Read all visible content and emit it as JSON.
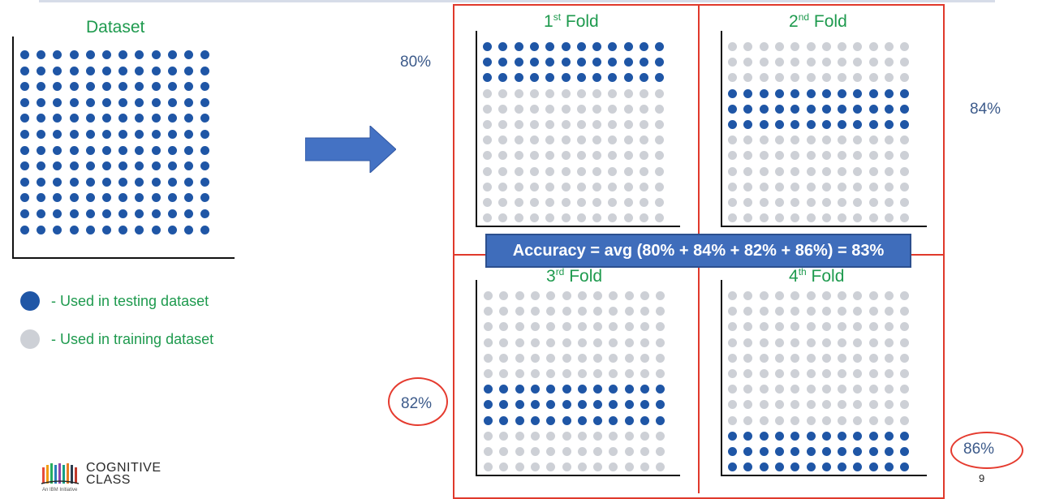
{
  "dataset": {
    "title": "Dataset"
  },
  "legend": {
    "testing": "- Used in testing dataset",
    "training": "- Used in training dataset"
  },
  "colors": {
    "testing_dot": "#1f56a6",
    "training_dot": "#cdd0d6",
    "fold_border": "#e0392b",
    "accuracy_box": "#3f6dbb",
    "title_green": "#1e9a4e",
    "arrow": "#4472c4"
  },
  "grid": {
    "rows": 12,
    "cols": 12
  },
  "folds": [
    {
      "ordinal": "1",
      "suffix": "st",
      "label": "Fold",
      "accuracy": "80%",
      "test_rows": [
        0,
        1,
        2
      ]
    },
    {
      "ordinal": "2",
      "suffix": "nd",
      "label": "Fold",
      "accuracy": "84%",
      "test_rows": [
        3,
        4,
        5
      ]
    },
    {
      "ordinal": "3",
      "suffix": "rd",
      "label": "Fold",
      "accuracy": "82%",
      "test_rows": [
        6,
        7,
        8
      ]
    },
    {
      "ordinal": "4",
      "suffix": "th",
      "label": "Fold",
      "accuracy": "86%",
      "test_rows": [
        9,
        10,
        11
      ]
    }
  ],
  "accuracy_formula": "Accuracy = avg (80% + 84% + 82% + 86%) = 83%",
  "logo": {
    "line1": "COGNITIVE",
    "line2": "CLASS",
    "tagline": "An IBM Initiative"
  },
  "page_number": "9",
  "arrow_icon": "right-arrow-icon"
}
